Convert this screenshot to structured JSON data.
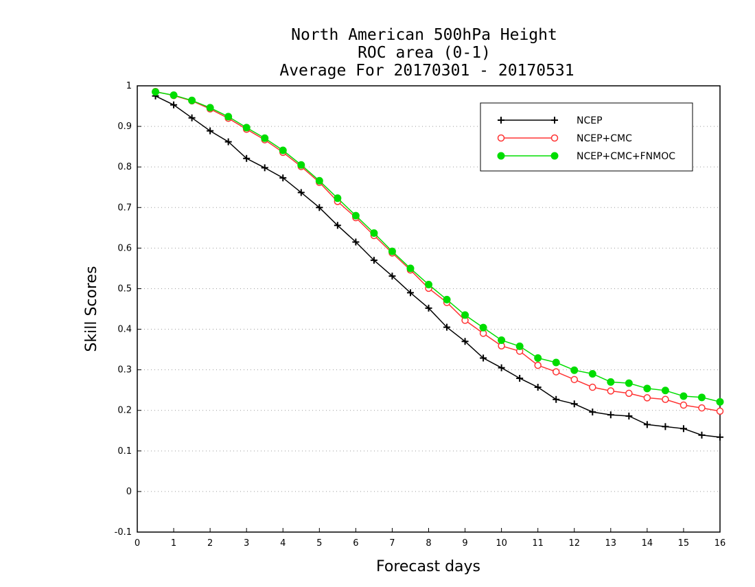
{
  "chart_data": {
    "type": "line",
    "title_lines": [
      "North American 500hPa Height",
      "ROC area (0-1)",
      "Average For 20170301 - 20170531"
    ],
    "xlabel": "Forecast days",
    "ylabel": "Skill Scores",
    "xlim": [
      0,
      16
    ],
    "ylim": [
      -0.1,
      1
    ],
    "xticks": [
      "0",
      "1",
      "2",
      "3",
      "4",
      "5",
      "6",
      "7",
      "8",
      "9",
      "10",
      "11",
      "12",
      "13",
      "14",
      "15",
      "16"
    ],
    "yticks": [
      "-0.1",
      "0",
      "0.1",
      "0.2",
      "0.3",
      "0.4",
      "0.5",
      "0.6",
      "0.7",
      "0.8",
      "0.9",
      "1"
    ],
    "grid": "horizontal dotted",
    "legend_position": "top-right",
    "x": [
      0.5,
      1,
      1.5,
      2,
      2.5,
      3,
      3.5,
      4,
      4.5,
      5,
      5.5,
      6,
      6.5,
      7,
      7.5,
      8,
      8.5,
      9,
      9.5,
      10,
      10.5,
      11,
      11.5,
      12,
      12.5,
      13,
      13.5,
      14,
      14.5,
      15,
      15.5,
      16
    ],
    "series": [
      {
        "name": "NCEP",
        "color": "#000000",
        "marker": "plus",
        "values": [
          0.975,
          0.953,
          0.921,
          0.889,
          0.862,
          0.821,
          0.798,
          0.773,
          0.737,
          0.7,
          0.656,
          0.615,
          0.57,
          0.531,
          0.49,
          0.452,
          0.405,
          0.37,
          0.329,
          0.305,
          0.279,
          0.257,
          0.227,
          0.216,
          0.196,
          0.189,
          0.186,
          0.165,
          0.16,
          0.155,
          0.139,
          0.134
        ]
      },
      {
        "name": "NCEP+CMC",
        "color": "#ff3333",
        "marker": "open-circle",
        "values": [
          0.986,
          0.976,
          0.963,
          0.943,
          0.92,
          0.893,
          0.867,
          0.836,
          0.801,
          0.762,
          0.715,
          0.675,
          0.631,
          0.588,
          0.546,
          0.501,
          0.466,
          0.422,
          0.39,
          0.359,
          0.346,
          0.311,
          0.295,
          0.276,
          0.257,
          0.248,
          0.242,
          0.231,
          0.227,
          0.213,
          0.206,
          0.198
        ]
      },
      {
        "name": "NCEP+CMC+FNMOC",
        "color": "#00dd00",
        "marker": "filled-circle",
        "values": [
          0.985,
          0.977,
          0.964,
          0.946,
          0.924,
          0.897,
          0.871,
          0.841,
          0.805,
          0.766,
          0.723,
          0.68,
          0.637,
          0.592,
          0.55,
          0.51,
          0.473,
          0.435,
          0.404,
          0.373,
          0.358,
          0.329,
          0.318,
          0.299,
          0.29,
          0.27,
          0.267,
          0.254,
          0.249,
          0.235,
          0.232,
          0.221
        ]
      }
    ]
  }
}
